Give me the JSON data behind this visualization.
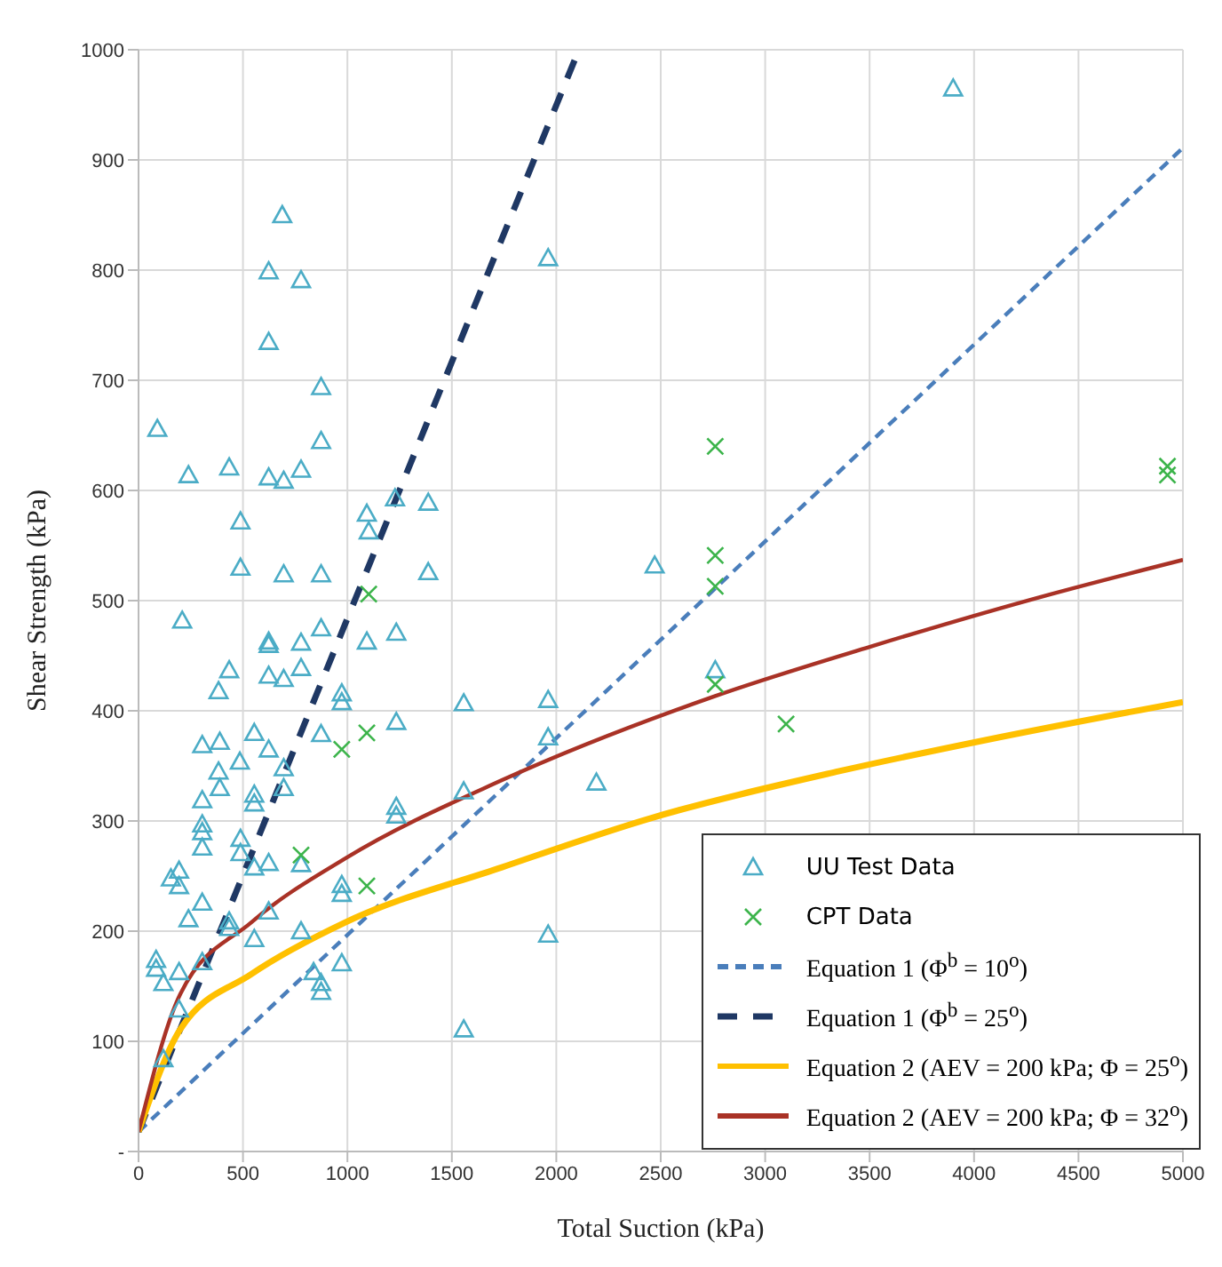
{
  "chart_data": {
    "type": "scatter",
    "xlabel": "Total Suction (kPa)",
    "ylabel": "Shear Strength (kPa)",
    "xlim": [
      0,
      5000
    ],
    "xticks": [
      0,
      500,
      1000,
      1500,
      2000,
      2500,
      3000,
      3500,
      4000,
      4500,
      5000
    ],
    "ylim": [
      0,
      1000
    ],
    "yticks": [
      {
        "value": 0,
        "label": "-"
      },
      100,
      200,
      300,
      400,
      500,
      600,
      700,
      800,
      900,
      1000
    ],
    "grid": true,
    "legend": "bottom right",
    "series": [
      {
        "name": "UU Test Data",
        "marker": "triangle",
        "color": "#4bacc6",
        "x": [
          3900,
          688,
          623,
          778,
          623,
          874,
          90,
          874,
          239,
          434,
          623,
          695,
          778,
          488,
          1093,
          1102,
          1228,
          1387,
          488,
          695,
          874,
          1387,
          209,
          623,
          623,
          778,
          874,
          1093,
          1234,
          434,
          623,
          695,
          778,
          383,
          973,
          973,
          1557,
          1234,
          305,
          389,
          554,
          623,
          485,
          874,
          383,
          389,
          554,
          554,
          695,
          695,
          305,
          305,
          305,
          305,
          488,
          488,
          623,
          554,
          778,
          1234,
          1234,
          1557,
          194,
          155,
          194,
          305,
          239,
          434,
          434,
          623,
          554,
          778,
          973,
          973,
          84,
          84,
          119,
          194,
          305,
          838,
          874,
          874,
          973,
          194,
          119,
          1557,
          1961,
          2471,
          2761,
          1961,
          1961,
          2192,
          1961
        ],
        "values": [
          965,
          850,
          799,
          791,
          735,
          694,
          656,
          645,
          614,
          621,
          612,
          609,
          619,
          572,
          579,
          563,
          593,
          589,
          530,
          524,
          524,
          526,
          482,
          463,
          460,
          462,
          475,
          463,
          471,
          437,
          432,
          429,
          439,
          418,
          416,
          408,
          407,
          390,
          369,
          372,
          380,
          365,
          354,
          379,
          345,
          330,
          324,
          316,
          330,
          348,
          319,
          297,
          290,
          276,
          284,
          271,
          262,
          258,
          261,
          313,
          305,
          327,
          255,
          248,
          241,
          226,
          211,
          209,
          203,
          218,
          193,
          200,
          242,
          234,
          174,
          166,
          153,
          163,
          172,
          163,
          153,
          145,
          171,
          129,
          84,
          111,
          811,
          532,
          437,
          410,
          376,
          335,
          197
        ]
      },
      {
        "name": "CPT Data",
        "marker": "cross",
        "color": "#3cb44b",
        "x": [
          1102,
          1093,
          973,
          778,
          1093,
          2761,
          2761,
          2761,
          2761,
          3100,
          4926,
          4926
        ],
        "values": [
          506,
          380,
          365,
          269,
          241,
          640,
          541,
          513,
          424,
          388,
          622,
          614
        ]
      },
      {
        "name": "Equation 1 (Φ$^{b}$ = 10$^{o}$)",
        "type": "line",
        "line_style": "dashed",
        "marker": "none",
        "color": "#4a7ebb",
        "x": [
          0,
          5000
        ],
        "values": [
          18,
          911
        ]
      },
      {
        "name": "Equation 1 (Φ$^{b}$ = 25$^{o}$)",
        "type": "line",
        "line_style": "dashed",
        "marker": "none",
        "color": "#1f3864",
        "x": [
          0,
          2108
        ],
        "values": [
          18,
          1000
        ]
      },
      {
        "name": "Equation 2 (AEV = 200 kPa; Φ = 25$^{o}$)",
        "type": "line",
        "line_style": "solid",
        "marker": "none",
        "color": "#ffc000",
        "x": [
          0,
          200,
          540,
          990,
          1740,
          2460,
          3350,
          4070,
          5000
        ],
        "values": [
          18,
          111,
          161,
          208,
          258,
          303,
          345,
          374,
          408
        ]
      },
      {
        "name": "Equation 2 (AEV = 200 kPa; Φ = 32$^{o}$)",
        "type": "line",
        "line_style": "solid",
        "marker": "none",
        "color": "#a93226",
        "x": [
          0,
          200,
          540,
          990,
          1740,
          2755,
          3500,
          4370,
          5000
        ],
        "values": [
          18,
          143,
          208,
          266,
          337,
          413,
          458,
          506,
          537
        ]
      }
    ]
  }
}
